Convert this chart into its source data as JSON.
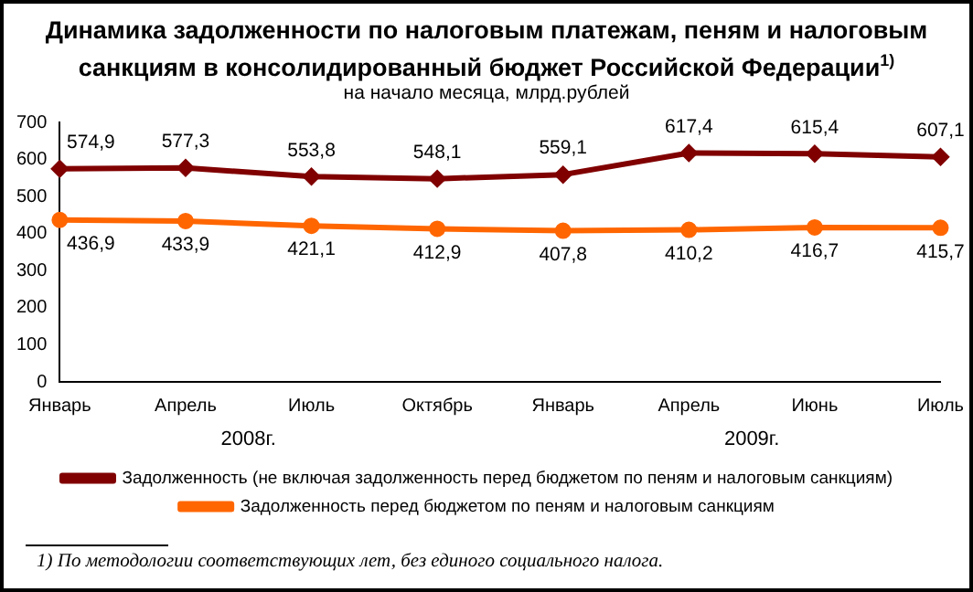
{
  "chart_data": {
    "type": "line",
    "title": "Динамика задолженности по налоговым платежам, пеням и налоговым санкциям в консолидированный бюджет Российской Федерации$^{1)}$",
    "subtitle": "на начало месяца, млрд.рублей",
    "categories": [
      "Январь",
      "Апрель",
      "Июль",
      "Октябрь",
      "Январь",
      "Апрель",
      "Июнь",
      "Июль"
    ],
    "series": [
      {
        "name": "Задолженность (не включая задолженность перед бюджетом по пеням и налоговым санкциям)",
        "color": "#800000",
        "marker": "diamond",
        "values": [
          574.9,
          577.3,
          553.8,
          548.1,
          559.1,
          617.4,
          615.4,
          607.1
        ],
        "value_labels": [
          "574,9",
          "577,3",
          "553,8",
          "548,1",
          "559,1",
          "617,4",
          "615,4",
          "607,1"
        ]
      },
      {
        "name": "Задолженность перед бюджетом по пеням и налоговым санкциям",
        "color": "#ff6600",
        "marker": "circle",
        "values": [
          436.9,
          433.9,
          421.1,
          412.9,
          407.8,
          410.2,
          416.7,
          415.7
        ],
        "value_labels": [
          "436,9",
          "433,9",
          "421,1",
          "412,9",
          "407,8",
          "410,2",
          "416,7",
          "415,7"
        ]
      }
    ],
    "ylim": [
      0,
      700
    ],
    "yticks": [
      0,
      100,
      200,
      300,
      400,
      500,
      600,
      700
    ],
    "grid": false,
    "legend": "bottom",
    "line_style": "solid",
    "annotations": [
      "2008г.",
      "2009г.",
      "1) По методологии соответствующих лет, без единого социального налога."
    ]
  }
}
